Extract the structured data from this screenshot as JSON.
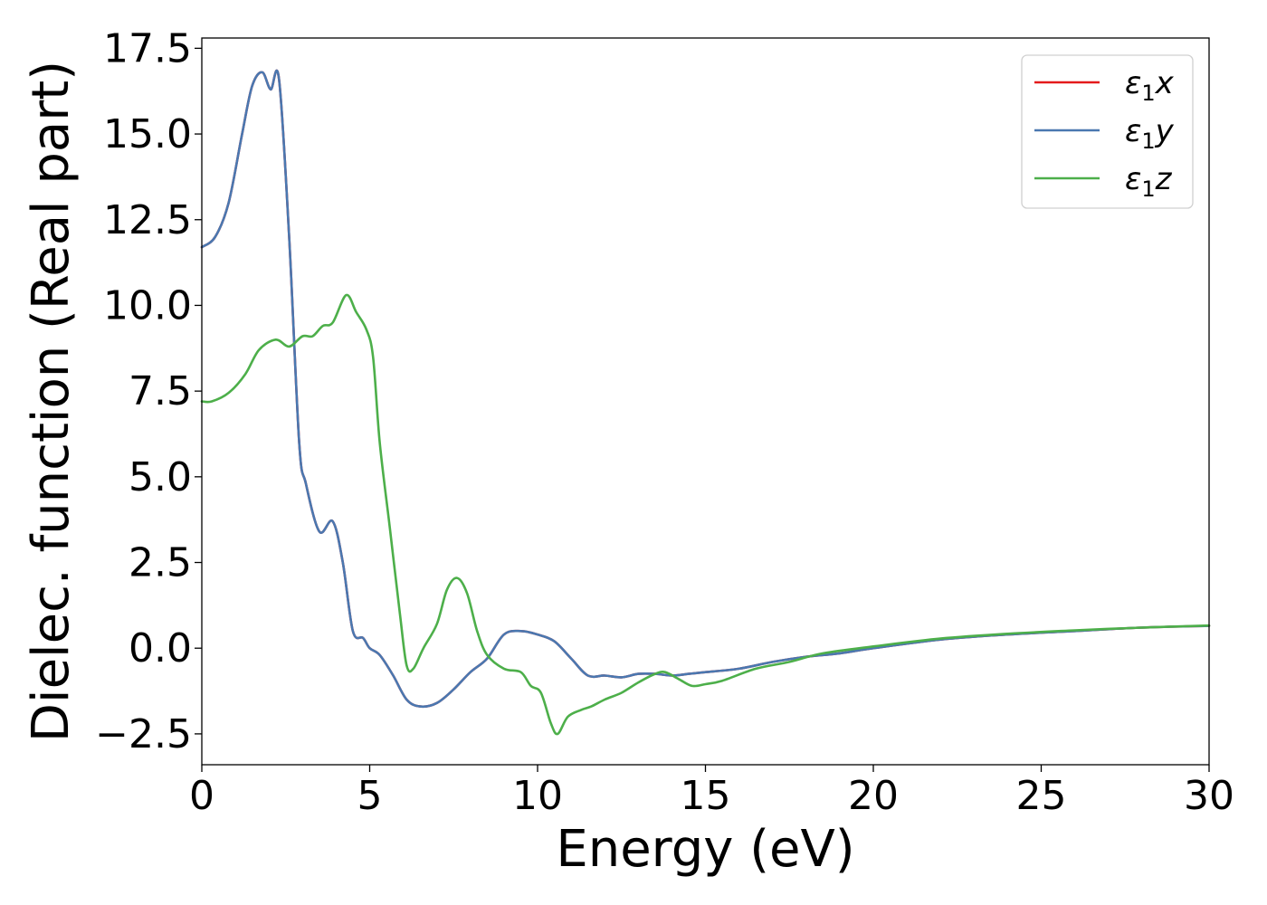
{
  "chart_data": {
    "type": "line",
    "title": "",
    "xlabel": "Energy (eV)",
    "ylabel": "Dielec. function (Real part)",
    "xlim": [
      0,
      30
    ],
    "ylim": [
      -3.4,
      17.8
    ],
    "xticks": [
      0,
      5,
      10,
      15,
      20,
      25,
      30
    ],
    "xtick_labels": [
      "0",
      "5",
      "10",
      "15",
      "20",
      "25",
      "30"
    ],
    "yticks": [
      -2.5,
      0.0,
      2.5,
      5.0,
      7.5,
      10.0,
      12.5,
      15.0,
      17.5
    ],
    "ytick_labels": [
      "−2.5",
      "0.0",
      "2.5",
      "5.0",
      "7.5",
      "10.0",
      "12.5",
      "15.0",
      "17.5"
    ],
    "grid": false,
    "legend_position": "top-right",
    "series": [
      {
        "name": "ε1x",
        "legend_symbol": "ε",
        "legend_sub": "1",
        "legend_var": "x",
        "color": "#e41a1c",
        "x": [
          0,
          0.4,
          0.8,
          1.2,
          1.5,
          1.8,
          2.05,
          2.3,
          2.6,
          2.9,
          3.1,
          3.5,
          3.9,
          4.2,
          4.5,
          4.8,
          5.0,
          5.3,
          5.7,
          6.1,
          6.5,
          7.0,
          7.5,
          8.0,
          8.5,
          9.0,
          9.5,
          10.0,
          10.5,
          11.0,
          11.5,
          12.0,
          12.5,
          13.0,
          13.5,
          14.0,
          14.5,
          15.0,
          16.0,
          17.0,
          18.0,
          19.0,
          20.0,
          22.0,
          24.0,
          26.0,
          28.0,
          30.0
        ],
        "y": [
          11.7,
          12.0,
          13.0,
          15.0,
          16.4,
          16.8,
          16.3,
          16.6,
          12.0,
          6.0,
          4.8,
          3.4,
          3.7,
          2.5,
          0.5,
          0.3,
          0.0,
          -0.2,
          -0.8,
          -1.5,
          -1.7,
          -1.6,
          -1.2,
          -0.7,
          -0.3,
          0.4,
          0.5,
          0.4,
          0.2,
          -0.3,
          -0.8,
          -0.8,
          -0.85,
          -0.75,
          -0.75,
          -0.8,
          -0.75,
          -0.7,
          -0.6,
          -0.4,
          -0.25,
          -0.15,
          0.0,
          0.25,
          0.4,
          0.5,
          0.6,
          0.65
        ]
      },
      {
        "name": "ε1y",
        "legend_symbol": "ε",
        "legend_sub": "1",
        "legend_var": "y",
        "color": "#4a78b0",
        "x": [
          0,
          0.4,
          0.8,
          1.2,
          1.5,
          1.8,
          2.05,
          2.3,
          2.6,
          2.9,
          3.1,
          3.5,
          3.9,
          4.2,
          4.5,
          4.8,
          5.0,
          5.3,
          5.7,
          6.1,
          6.5,
          7.0,
          7.5,
          8.0,
          8.5,
          9.0,
          9.5,
          10.0,
          10.5,
          11.0,
          11.5,
          12.0,
          12.5,
          13.0,
          13.5,
          14.0,
          14.5,
          15.0,
          16.0,
          17.0,
          18.0,
          19.0,
          20.0,
          22.0,
          24.0,
          26.0,
          28.0,
          30.0
        ],
        "y": [
          11.7,
          12.0,
          13.0,
          15.0,
          16.4,
          16.8,
          16.3,
          16.6,
          12.0,
          6.0,
          4.8,
          3.4,
          3.7,
          2.5,
          0.5,
          0.3,
          0.0,
          -0.2,
          -0.8,
          -1.5,
          -1.7,
          -1.6,
          -1.2,
          -0.7,
          -0.3,
          0.4,
          0.5,
          0.4,
          0.2,
          -0.3,
          -0.8,
          -0.8,
          -0.85,
          -0.75,
          -0.75,
          -0.8,
          -0.75,
          -0.7,
          -0.6,
          -0.4,
          -0.25,
          -0.15,
          0.0,
          0.25,
          0.4,
          0.5,
          0.6,
          0.65
        ]
      },
      {
        "name": "ε1z",
        "legend_symbol": "ε",
        "legend_sub": "1",
        "legend_var": "z",
        "color": "#4daf4a",
        "x": [
          0,
          0.3,
          0.8,
          1.3,
          1.7,
          2.2,
          2.6,
          3.0,
          3.3,
          3.6,
          3.9,
          4.3,
          4.6,
          4.9,
          5.1,
          5.3,
          5.6,
          5.9,
          6.1,
          6.3,
          6.6,
          7.0,
          7.3,
          7.6,
          7.9,
          8.2,
          8.5,
          9.0,
          9.5,
          9.8,
          10.1,
          10.4,
          10.6,
          10.9,
          11.3,
          11.6,
          12.0,
          12.5,
          13.0,
          13.5,
          13.8,
          14.2,
          14.6,
          15.0,
          15.5,
          16.5,
          17.5,
          18.5,
          20.0,
          22.0,
          24.0,
          26.0,
          28.0,
          30.0
        ],
        "y": [
          7.2,
          7.2,
          7.45,
          8.0,
          8.7,
          9.0,
          8.8,
          9.1,
          9.1,
          9.4,
          9.5,
          10.3,
          9.8,
          9.3,
          8.5,
          6.0,
          3.5,
          1.0,
          -0.5,
          -0.6,
          0.0,
          0.7,
          1.7,
          2.05,
          1.6,
          0.5,
          -0.2,
          -0.6,
          -0.7,
          -1.1,
          -1.3,
          -2.2,
          -2.5,
          -2.0,
          -1.8,
          -1.7,
          -1.5,
          -1.3,
          -1.0,
          -0.75,
          -0.7,
          -0.9,
          -1.1,
          -1.05,
          -0.95,
          -0.6,
          -0.4,
          -0.15,
          0.05,
          0.28,
          0.42,
          0.52,
          0.6,
          0.66
        ]
      }
    ]
  }
}
